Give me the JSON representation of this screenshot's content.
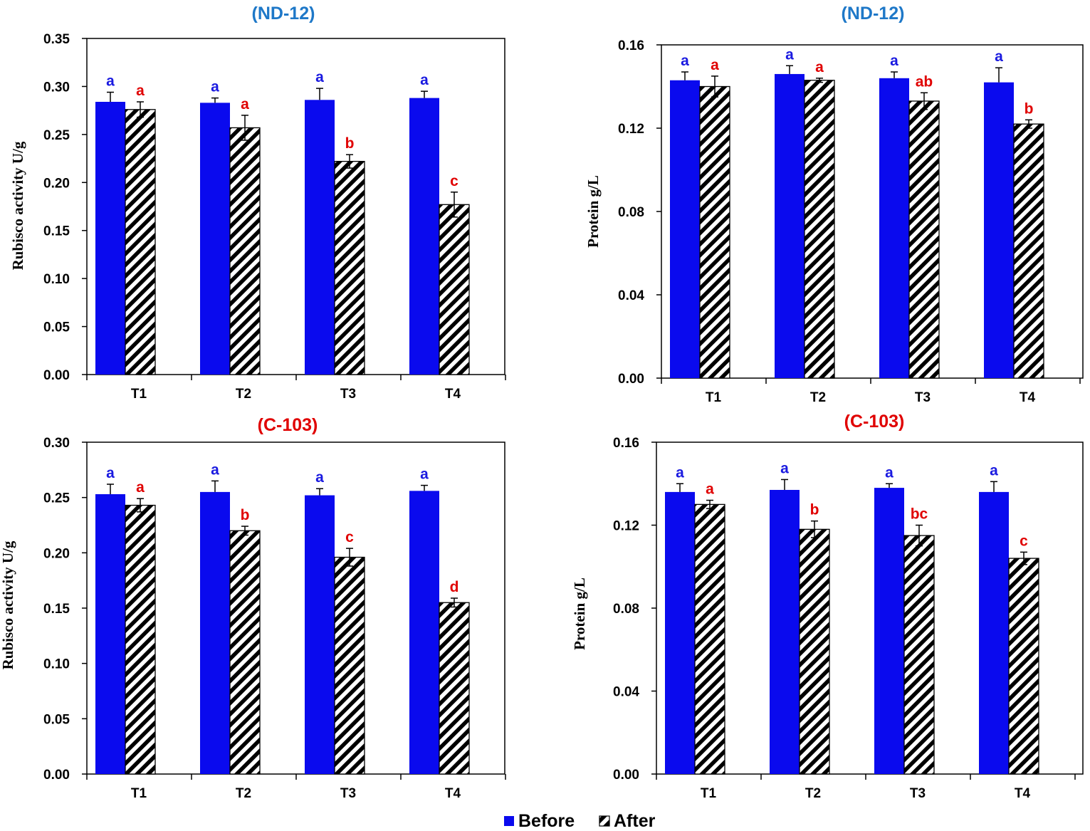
{
  "colors": {
    "before": "#0a0aee",
    "title_blue": "#1e78c8",
    "title_red": "#e00000",
    "sig_blue": "#1a1ae0",
    "sig_red": "#e00000"
  },
  "legend": {
    "before": "Before",
    "after": "After"
  },
  "chart_data": [
    {
      "type": "bar",
      "title": "(ND-12)",
      "title_color": "blue",
      "ylabel": "Rubisco activity U/g",
      "categories": [
        "T1",
        "T2",
        "T3",
        "T4"
      ],
      "ylim": [
        0,
        0.35
      ],
      "yticks": [
        "0.00",
        "0.05",
        "0.10",
        "0.15",
        "0.20",
        "0.25",
        "0.30",
        "0.35"
      ],
      "series": [
        {
          "name": "Before",
          "values": [
            0.284,
            0.283,
            0.286,
            0.288
          ],
          "errors": [
            0.01,
            0.005,
            0.012,
            0.007
          ],
          "labels": [
            "a",
            "a",
            "a",
            "a"
          ]
        },
        {
          "name": "After",
          "values": [
            0.276,
            0.257,
            0.222,
            0.177
          ],
          "errors": [
            0.008,
            0.013,
            0.007,
            0.013
          ],
          "labels": [
            "a",
            "a",
            "b",
            "c"
          ]
        }
      ]
    },
    {
      "type": "bar",
      "title": "(ND-12)",
      "title_color": "blue",
      "ylabel": "Protein g/L",
      "categories": [
        "T1",
        "T2",
        "T3",
        "T4"
      ],
      "ylim": [
        0,
        0.16
      ],
      "yticks": [
        "0.00",
        "0.04",
        "0.08",
        "0.12",
        "0.16"
      ],
      "series": [
        {
          "name": "Before",
          "values": [
            0.143,
            0.146,
            0.144,
            0.142
          ],
          "errors": [
            0.004,
            0.004,
            0.003,
            0.007
          ],
          "labels": [
            "a",
            "a",
            "a",
            "a"
          ]
        },
        {
          "name": "After",
          "values": [
            0.14,
            0.143,
            0.133,
            0.122
          ],
          "errors": [
            0.005,
            0.001,
            0.004,
            0.002
          ],
          "labels": [
            "a",
            "a",
            "ab",
            "b"
          ]
        }
      ]
    },
    {
      "type": "bar",
      "title": "(C-103)",
      "title_color": "red",
      "ylabel": "Rubisco activity U/g",
      "categories": [
        "T1",
        "T2",
        "T3",
        "T4"
      ],
      "ylim": [
        0,
        0.3
      ],
      "yticks": [
        "0.00",
        "0.05",
        "0.10",
        "0.15",
        "0.20",
        "0.25",
        "0.30"
      ],
      "series": [
        {
          "name": "Before",
          "values": [
            0.253,
            0.255,
            0.252,
            0.256
          ],
          "errors": [
            0.009,
            0.01,
            0.006,
            0.005
          ],
          "labels": [
            "a",
            "a",
            "a",
            "a"
          ]
        },
        {
          "name": "After",
          "values": [
            0.243,
            0.22,
            0.196,
            0.155
          ],
          "errors": [
            0.006,
            0.004,
            0.008,
            0.004
          ],
          "labels": [
            "a",
            "b",
            "c",
            "d"
          ]
        }
      ]
    },
    {
      "type": "bar",
      "title": "(C-103)",
      "title_color": "red",
      "ylabel": "Protein g/L",
      "categories": [
        "T1",
        "T2",
        "T3",
        "T4"
      ],
      "ylim": [
        0,
        0.16
      ],
      "yticks": [
        "0.00",
        "0.04",
        "0.08",
        "0.12",
        "0.16"
      ],
      "series": [
        {
          "name": "Before",
          "values": [
            0.136,
            0.137,
            0.138,
            0.136
          ],
          "errors": [
            0.004,
            0.005,
            0.002,
            0.005
          ],
          "labels": [
            "a",
            "a",
            "a",
            "a"
          ]
        },
        {
          "name": "After",
          "values": [
            0.13,
            0.118,
            0.115,
            0.104
          ],
          "errors": [
            0.002,
            0.004,
            0.005,
            0.003
          ],
          "labels": [
            "a",
            "b",
            "bc",
            "c"
          ]
        }
      ]
    }
  ]
}
